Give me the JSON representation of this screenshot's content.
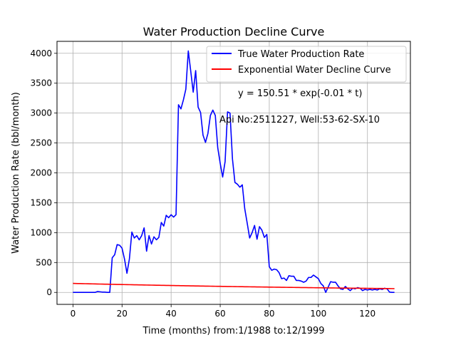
{
  "chart_data": {
    "type": "line",
    "title": "Water Production Decline Curve",
    "xlabel": "Time (months) from:1/1988 to:12/1999",
    "ylabel": "Water Production Rate (bbl/month)",
    "xlim": [
      -6.5,
      137.5
    ],
    "ylim": [
      -200,
      4200
    ],
    "x_ticks": [
      0,
      20,
      40,
      60,
      80,
      100,
      120
    ],
    "y_ticks": [
      0,
      500,
      1000,
      1500,
      2000,
      2500,
      3000,
      3500,
      4000
    ],
    "grid": true,
    "legend_position": "top-right",
    "annotations": [
      "y = 150.51 * exp(-0.01 * t)",
      "Api No:2511227, Well:53-62-SX-10"
    ],
    "series": [
      {
        "name": "True Water Production Rate",
        "color": "#0000ff",
        "x": [
          0,
          1,
          2,
          3,
          4,
          5,
          6,
          7,
          8,
          9,
          10,
          11,
          12,
          13,
          14,
          15,
          16,
          17,
          18,
          19,
          20,
          21,
          22,
          23,
          24,
          25,
          26,
          27,
          28,
          29,
          30,
          31,
          32,
          33,
          34,
          35,
          36,
          37,
          38,
          39,
          40,
          41,
          42,
          43,
          44,
          45,
          46,
          47,
          48,
          49,
          50,
          51,
          52,
          53,
          54,
          55,
          56,
          57,
          58,
          59,
          60,
          61,
          62,
          63,
          64,
          65,
          66,
          67,
          68,
          69,
          70,
          71,
          72,
          73,
          74,
          75,
          76,
          77,
          78,
          79,
          80,
          81,
          82,
          83,
          84,
          85,
          86,
          87,
          88,
          89,
          90,
          91,
          92,
          93,
          94,
          95,
          96,
          97,
          98,
          99,
          100,
          101,
          102,
          103,
          104,
          105,
          106,
          107,
          108,
          109,
          110,
          111,
          112,
          113,
          114,
          115,
          116,
          117,
          118,
          119,
          120,
          121,
          122,
          123,
          124,
          125,
          126,
          127,
          128,
          129,
          130,
          131
        ],
        "y": [
          0,
          0,
          0,
          0,
          0,
          0,
          0,
          0,
          0,
          0,
          15,
          10,
          5,
          5,
          0,
          0,
          580,
          630,
          800,
          790,
          740,
          560,
          320,
          560,
          1010,
          910,
          950,
          880,
          950,
          1080,
          690,
          950,
          810,
          930,
          880,
          920,
          1170,
          1110,
          1290,
          1250,
          1300,
          1260,
          1300,
          3140,
          3070,
          3220,
          3400,
          4040,
          3700,
          3350,
          3710,
          3100,
          3010,
          2630,
          2510,
          2660,
          2960,
          3050,
          2960,
          2420,
          2160,
          1930,
          2190,
          3020,
          3000,
          2230,
          1840,
          1810,
          1760,
          1800,
          1400,
          1160,
          910,
          1000,
          1120,
          890,
          1100,
          1040,
          920,
          970,
          430,
          370,
          390,
          380,
          330,
          230,
          240,
          200,
          280,
          270,
          270,
          200,
          200,
          190,
          170,
          190,
          250,
          250,
          290,
          260,
          230,
          150,
          110,
          0,
          90,
          180,
          170,
          170,
          110,
          60,
          50,
          100,
          60,
          30,
          70,
          60,
          80,
          70,
          30,
          50,
          40,
          50,
          40,
          50,
          40,
          60,
          50,
          70,
          60,
          5,
          0,
          0
        ],
        "cap_values": [
          4040
        ]
      },
      {
        "name": "Exponential Water Decline Curve",
        "color": "#ff0000",
        "equation": "y = 150.51 * exp(-0.01 * t)",
        "a": 150.51,
        "b": 0.0066,
        "x_start": 0,
        "x_end": 131
      }
    ]
  }
}
